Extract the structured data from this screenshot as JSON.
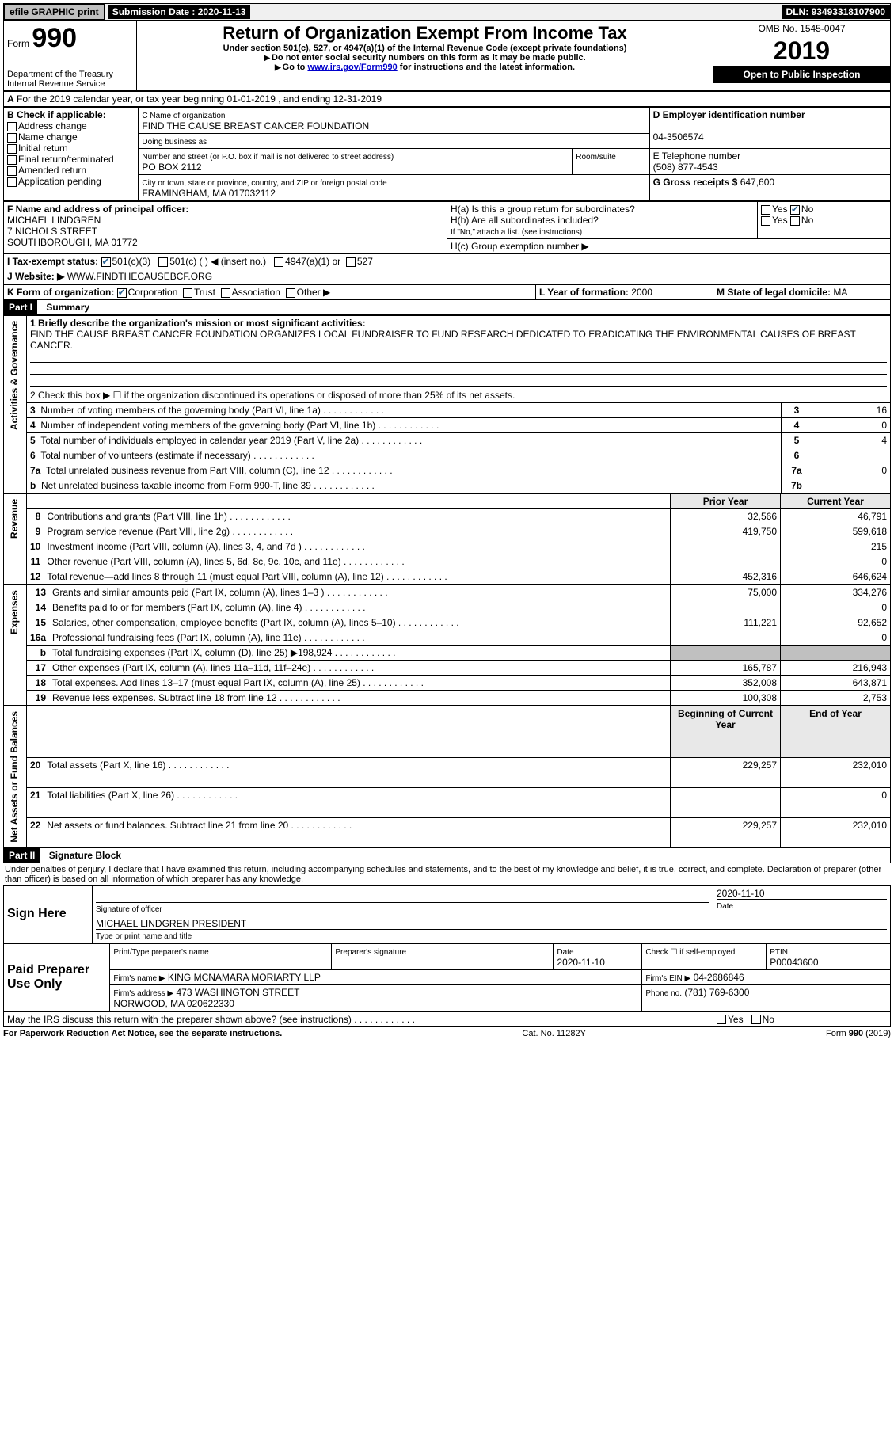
{
  "topbar": {
    "efile": "efile GRAPHIC print",
    "subdate_label": "Submission Date :",
    "subdate": "2020-11-13",
    "dln_label": "DLN:",
    "dln": "93493318107900"
  },
  "header": {
    "form_label": "Form",
    "form_no": "990",
    "dept": "Department of the Treasury\nInternal Revenue Service",
    "title": "Return of Organization Exempt From Income Tax",
    "subtitle": "Under section 501(c), 527, or 4947(a)(1) of the Internal Revenue Code (except private foundations)",
    "note1": "Do not enter social security numbers on this form as it may be made public.",
    "note2_pre": "Go to ",
    "note2_link": "www.irs.gov/Form990",
    "note2_post": " for instructions and the latest information.",
    "omb": "OMB No. 1545-0047",
    "year": "2019",
    "open": "Open to Public Inspection"
  },
  "period": {
    "line": "For the 2019 calendar year, or tax year beginning 01-01-2019   , and ending 12-31-2019"
  },
  "boxB": {
    "label": "B Check if applicable:",
    "items": [
      "Address change",
      "Name change",
      "Initial return",
      "Final return/terminated",
      "Amended return",
      "Application pending"
    ]
  },
  "boxC": {
    "name_label": "C Name of organization",
    "name": "FIND THE CAUSE BREAST CANCER FOUNDATION",
    "dba_label": "Doing business as",
    "dba": "",
    "addr_label": "Number and street (or P.O. box if mail is not delivered to street address)",
    "room_label": "Room/suite",
    "addr": "PO BOX 2112",
    "city_label": "City or town, state or province, country, and ZIP or foreign postal code",
    "city": "FRAMINGHAM, MA  017032112"
  },
  "boxD": {
    "label": "D Employer identification number",
    "value": "04-3506574"
  },
  "boxE": {
    "label": "E Telephone number",
    "value": "(508) 877-4543"
  },
  "boxG": {
    "label": "G Gross receipts $",
    "value": "647,600"
  },
  "boxF": {
    "label": "F Name and address of principal officer:",
    "name": "MICHAEL LINDGREN",
    "addr1": "7 NICHOLS STREET",
    "addr2": "SOUTHBOROUGH, MA  01772"
  },
  "boxH": {
    "a": "H(a)  Is this a group return for subordinates?",
    "b": "H(b)  Are all subordinates included?",
    "b_note": "If \"No,\" attach a list. (see instructions)",
    "c": "H(c)  Group exemption number ▶",
    "yes": "Yes",
    "no": "No"
  },
  "boxI": {
    "label": "I  Tax-exempt status:",
    "opts": [
      "501(c)(3)",
      "501(c) (  ) ◀ (insert no.)",
      "4947(a)(1) or",
      "527"
    ]
  },
  "boxJ": {
    "label": "J  Website: ▶",
    "value": "WWW.FINDTHECAUSEBCF.ORG"
  },
  "boxK": {
    "label": "K Form of organization:",
    "opts": [
      "Corporation",
      "Trust",
      "Association",
      "Other ▶"
    ]
  },
  "boxL": {
    "label": "L Year of formation:",
    "value": "2000"
  },
  "boxM": {
    "label": "M State of legal domicile:",
    "value": "MA"
  },
  "part1": {
    "title": "Part I",
    "subtitle": "Summary",
    "line1_label": "1  Briefly describe the organization's mission or most significant activities:",
    "mission": "FIND THE CAUSE BREAST CANCER FOUNDATION ORGANIZES LOCAL FUNDRAISER TO FUND RESEARCH DEDICATED TO ERADICATING THE ENVIRONMENTAL CAUSES OF BREAST CANCER.",
    "line2": "2    Check this box ▶ ☐  if the organization discontinued its operations or disposed of more than 25% of its net assets.",
    "activities_label": "Activities & Governance",
    "revenue_label": "Revenue",
    "expenses_label": "Expenses",
    "netassets_label": "Net Assets or Fund Balances",
    "rows_ag": [
      {
        "n": "3",
        "t": "Number of voting members of the governing body (Part VI, line 1a)",
        "c": "3",
        "v": "16"
      },
      {
        "n": "4",
        "t": "Number of independent voting members of the governing body (Part VI, line 1b)",
        "c": "4",
        "v": "0"
      },
      {
        "n": "5",
        "t": "Total number of individuals employed in calendar year 2019 (Part V, line 2a)",
        "c": "5",
        "v": "4"
      },
      {
        "n": "6",
        "t": "Total number of volunteers (estimate if necessary)",
        "c": "6",
        "v": ""
      },
      {
        "n": "7a",
        "t": "Total unrelated business revenue from Part VIII, column (C), line 12",
        "c": "7a",
        "v": "0"
      },
      {
        "n": "b",
        "t": "Net unrelated business taxable income from Form 990-T, line 39",
        "c": "7b",
        "v": ""
      }
    ],
    "col_prior": "Prior Year",
    "col_current": "Current Year",
    "rows_rev": [
      {
        "n": "8",
        "t": "Contributions and grants (Part VIII, line 1h)",
        "p": "32,566",
        "c": "46,791"
      },
      {
        "n": "9",
        "t": "Program service revenue (Part VIII, line 2g)",
        "p": "419,750",
        "c": "599,618"
      },
      {
        "n": "10",
        "t": "Investment income (Part VIII, column (A), lines 3, 4, and 7d )",
        "p": "",
        "c": "215"
      },
      {
        "n": "11",
        "t": "Other revenue (Part VIII, column (A), lines 5, 6d, 8c, 9c, 10c, and 11e)",
        "p": "",
        "c": "0"
      },
      {
        "n": "12",
        "t": "Total revenue—add lines 8 through 11 (must equal Part VIII, column (A), line 12)",
        "p": "452,316",
        "c": "646,624"
      }
    ],
    "rows_exp": [
      {
        "n": "13",
        "t": "Grants and similar amounts paid (Part IX, column (A), lines 1–3 )",
        "p": "75,000",
        "c": "334,276"
      },
      {
        "n": "14",
        "t": "Benefits paid to or for members (Part IX, column (A), line 4)",
        "p": "",
        "c": "0"
      },
      {
        "n": "15",
        "t": "Salaries, other compensation, employee benefits (Part IX, column (A), lines 5–10)",
        "p": "111,221",
        "c": "92,652"
      },
      {
        "n": "16a",
        "t": "Professional fundraising fees (Part IX, column (A), line 11e)",
        "p": "",
        "c": "0"
      },
      {
        "n": "b",
        "t": "Total fundraising expenses (Part IX, column (D), line 25) ▶198,924",
        "p": "shade",
        "c": "shade"
      },
      {
        "n": "17",
        "t": "Other expenses (Part IX, column (A), lines 11a–11d, 11f–24e)",
        "p": "165,787",
        "c": "216,943"
      },
      {
        "n": "18",
        "t": "Total expenses. Add lines 13–17 (must equal Part IX, column (A), line 25)",
        "p": "352,008",
        "c": "643,871"
      },
      {
        "n": "19",
        "t": "Revenue less expenses. Subtract line 18 from line 12",
        "p": "100,308",
        "c": "2,753"
      }
    ],
    "col_begin": "Beginning of Current Year",
    "col_end": "End of Year",
    "rows_net": [
      {
        "n": "20",
        "t": "Total assets (Part X, line 16)",
        "p": "229,257",
        "c": "232,010"
      },
      {
        "n": "21",
        "t": "Total liabilities (Part X, line 26)",
        "p": "",
        "c": "0"
      },
      {
        "n": "22",
        "t": "Net assets or fund balances. Subtract line 21 from line 20",
        "p": "229,257",
        "c": "232,010"
      }
    ]
  },
  "part2": {
    "title": "Part II",
    "subtitle": "Signature Block",
    "declaration": "Under penalties of perjury, I declare that I have examined this return, including accompanying schedules and statements, and to the best of my knowledge and belief, it is true, correct, and complete. Declaration of preparer (other than officer) is based on all information of which preparer has any knowledge.",
    "sign_here": "Sign Here",
    "sig_officer": "Signature of officer",
    "sig_date": "2020-11-10",
    "date_label": "Date",
    "officer_name": "MICHAEL LINDGREN PRESIDENT",
    "type_label": "Type or print name and title",
    "paid": "Paid Preparer Use Only",
    "prep_name_label": "Print/Type preparer's name",
    "prep_sig_label": "Preparer's signature",
    "prep_date": "2020-11-10",
    "self_emp": "Check ☐ if self-employed",
    "ptin_label": "PTIN",
    "ptin": "P00043600",
    "firm_name_label": "Firm's name    ▶",
    "firm_name": "KING MCNAMARA MORIARTY LLP",
    "firm_ein_label": "Firm's EIN ▶",
    "firm_ein": "04-2686846",
    "firm_addr_label": "Firm's address ▶",
    "firm_addr": "473 WASHINGTON STREET\nNORWOOD, MA  020622330",
    "phone_label": "Phone no.",
    "phone": "(781) 769-6300",
    "discuss": "May the IRS discuss this return with the preparer shown above? (see instructions)",
    "yes": "Yes",
    "no": "No"
  },
  "footer": {
    "left": "For Paperwork Reduction Act Notice, see the separate instructions.",
    "center": "Cat. No. 11282Y",
    "right": "Form 990 (2019)"
  }
}
